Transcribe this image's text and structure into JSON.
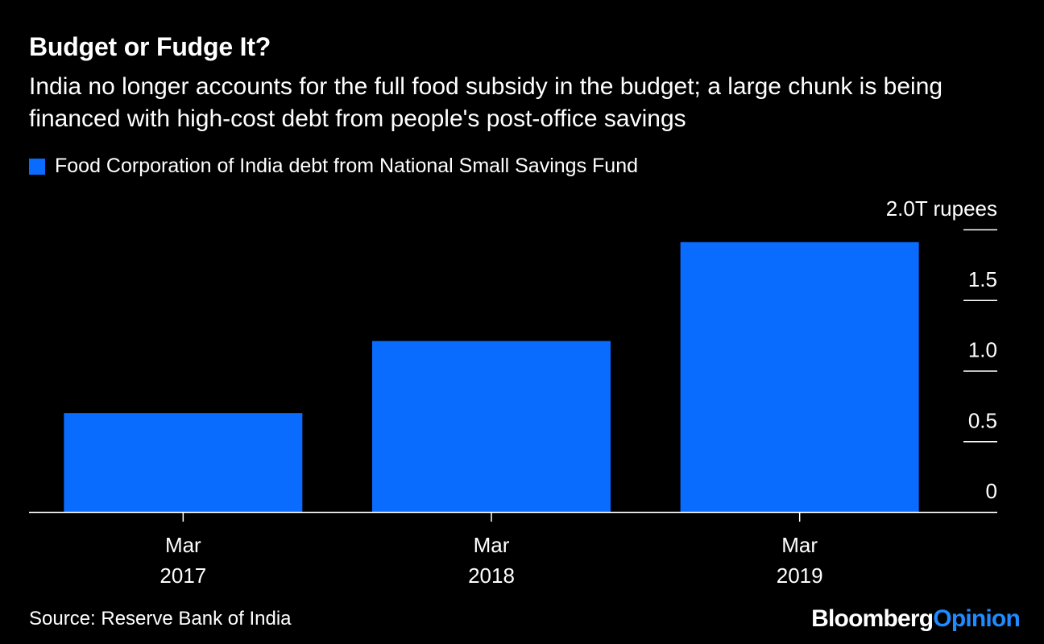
{
  "header": {
    "title": "Budget or Fudge It?",
    "subtitle": "India no longer accounts for the full food subsidy in the budget; a large chunk is being financed with high-cost debt from people's post-office savings"
  },
  "legend": {
    "label": "Food Corporation of India debt from National Small Savings Fund"
  },
  "footer": {
    "source": "Source: Reserve Bank of India",
    "brand_part1": "Bloomberg",
    "brand_part2": "Opinion"
  },
  "colors": {
    "background": "#000000",
    "bar": "#0a6cff",
    "text": "#ffffff",
    "brand_accent": "#1f8bff"
  },
  "chart_data": {
    "type": "bar",
    "categories": [
      [
        "Mar",
        "2017"
      ],
      [
        "Mar",
        "2018"
      ],
      [
        "Mar",
        "2019"
      ]
    ],
    "series": [
      {
        "name": "Food Corporation of India debt from National Small Savings Fund",
        "values": [
          0.7,
          1.21,
          1.91
        ]
      }
    ],
    "ylim": [
      0,
      2.0
    ],
    "yticks": [
      0,
      0.5,
      1.0,
      1.5,
      2.0
    ],
    "ytick_labels": [
      "0",
      "0.5",
      "1.0",
      "1.5",
      "2.0T rupees"
    ],
    "axis_position": "right",
    "grid": false
  }
}
